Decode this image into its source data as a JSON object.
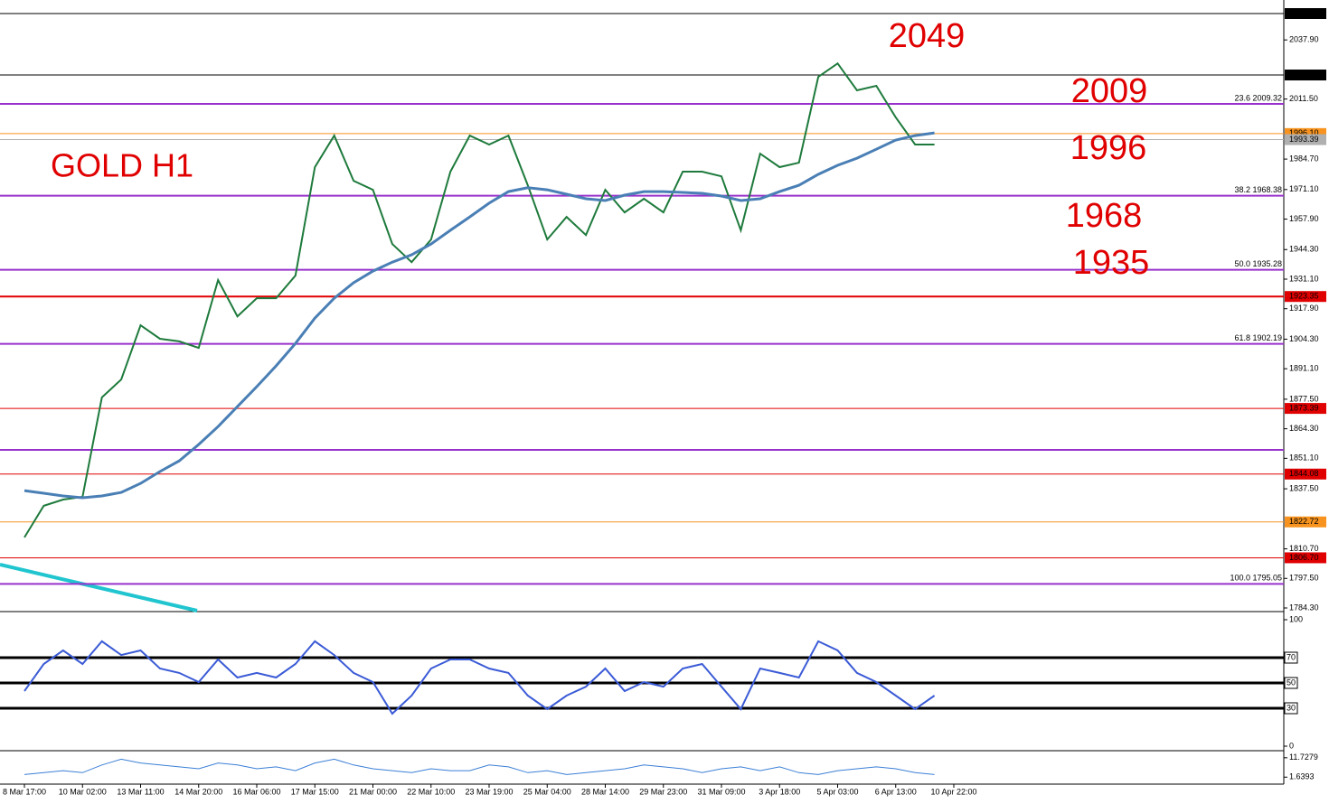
{
  "chart_data": [
    {
      "type": "line",
      "title": "GOLD H1",
      "categories": [
        "8 Mar 17:00",
        null,
        null,
        "10 Mar 02:00",
        null,
        null,
        "13 Mar 11:00",
        null,
        null,
        "14 Mar 20:00",
        null,
        null,
        "16 Mar 06:00",
        null,
        null,
        "17 Mar 15:00",
        null,
        null,
        "21 Mar 00:00",
        null,
        null,
        "22 Mar 10:00",
        null,
        null,
        "23 Mar 19:00",
        null,
        null,
        "25 Mar 04:00",
        null,
        null,
        "28 Mar 14:00",
        null,
        null,
        "29 Mar 23:00",
        null,
        null,
        "31 Mar 09:00",
        null,
        null,
        "3 Apr 18:00",
        null,
        null,
        "5 Apr 03:00",
        null,
        null,
        "6 Apr 13:00",
        null,
        null,
        "10 Apr 22:00"
      ],
      "series": [
        {
          "color": "#1e7a3c",
          "values": [
            1815.8,
            1829.9,
            1832.7,
            1833.9,
            1878.3,
            1886.3,
            1910.5,
            1904.5,
            1903.3,
            1900.4,
            1930.7,
            1914.5,
            1922.6,
            1922.6,
            1932.7,
            1981.1,
            1995.2,
            1975.0,
            1971.0,
            1946.8,
            1938.7,
            1948.8,
            1979.1,
            1995.2,
            1991.2,
            1995.2,
            1973.0,
            1948.8,
            1958.9,
            1950.8,
            1971.0,
            1960.9,
            1967.0,
            1960.9,
            1979.1,
            1979.1,
            1977.0,
            1952.9,
            1987.1,
            1981.1,
            1983.1,
            2021.4,
            2027.4,
            2015.4,
            2017.4,
            2003.3,
            1991.2,
            1991.2,
            null
          ]
        },
        {
          "color": "#4a7fb5",
          "values": [
            1836.7,
            1835.5,
            1834.3,
            1833.5,
            1834.3,
            1835.9,
            1839.9,
            1845.2,
            1850.0,
            1857.3,
            1865.3,
            1874.2,
            1883.1,
            1892.4,
            1902.4,
            1913.7,
            1922.6,
            1929.5,
            1934.7,
            1938.7,
            1942.0,
            1946.8,
            1952.9,
            1958.9,
            1965.0,
            1970.2,
            1971.9,
            1971.0,
            1969.0,
            1967.0,
            1966.2,
            1968.6,
            1970.2,
            1970.2,
            1969.8,
            1969.4,
            1968.2,
            1966.2,
            1967.0,
            1970.2,
            1973.0,
            1977.9,
            1981.9,
            1985.1,
            1989.1,
            1993.2,
            1995.2,
            1996.4,
            null
          ]
        }
      ],
      "ylim": [
        1784.3,
        2049.67
      ],
      "yticks": [
        {
          "value": 2037.9,
          "label": "2037.90"
        },
        {
          "value": 2011.5,
          "label": "2011.50"
        },
        {
          "value": 1984.7,
          "label": "1984.70"
        },
        {
          "value": 1971.1,
          "label": "1971.10"
        },
        {
          "value": 1957.9,
          "label": "1957.90"
        },
        {
          "value": 1944.3,
          "label": "1944.30"
        },
        {
          "value": 1931.1,
          "label": "1931.10"
        },
        {
          "value": 1917.9,
          "label": "1917.90"
        },
        {
          "value": 1904.3,
          "label": "1904.30"
        },
        {
          "value": 1891.1,
          "label": "1891.10"
        },
        {
          "value": 1877.5,
          "label": "1877.50"
        },
        {
          "value": 1864.3,
          "label": "1864.30"
        },
        {
          "value": 1851.1,
          "label": "1851.10"
        },
        {
          "value": 1837.5,
          "label": "1837.50"
        },
        {
          "value": 1810.7,
          "label": "1810.70"
        },
        {
          "value": 1797.5,
          "label": "1797.50"
        },
        {
          "value": 1784.3,
          "label": "1784.30"
        }
      ],
      "price_lines": [
        {
          "value": 2049.67,
          "label": "2049.67",
          "color": "#000000",
          "width": 1
        },
        {
          "value": 2022.24,
          "label": "2022.24",
          "color": "#000000",
          "width": 1
        },
        {
          "value": 2009.32,
          "label": "2009.32",
          "level": "23.6",
          "color": "#9932cc",
          "width": 2
        },
        {
          "value": 1996.1,
          "label": "1996.10",
          "color": "#f7931e",
          "width": 1
        },
        {
          "value": 1993.39,
          "label": "1993.39",
          "color": "#b0b0b0",
          "width": 1
        },
        {
          "value": 1968.38,
          "label": "1968.38",
          "level": "38.2",
          "color": "#9932cc",
          "width": 2
        },
        {
          "value": 1935.28,
          "label": "1935.28",
          "level": "50.0",
          "color": "#9932cc",
          "width": 2
        },
        {
          "value": 1923.35,
          "label": "1923.35",
          "color": "#e00000",
          "width": 2
        },
        {
          "value": 1902.19,
          "label": "1902.19",
          "level": "61.8",
          "color": "#9932cc",
          "width": 2
        },
        {
          "value": 1873.39,
          "label": "1873.39",
          "color": "#e00000",
          "width": 1
        },
        {
          "value": 1854.9,
          "color": "#9932cc",
          "width": 2
        },
        {
          "value": 1844.08,
          "label": "1844.08",
          "color": "#e00000",
          "width": 1
        },
        {
          "value": 1822.72,
          "label": "1822.72",
          "color": "#f7931e",
          "width": 1
        },
        {
          "value": 1806.7,
          "label": "1806.70",
          "color": "#e00000",
          "width": 1
        },
        {
          "value": 1795.05,
          "label": "1795.05",
          "level": "100.0",
          "color": "#9932cc",
          "width": 2
        }
      ],
      "annotations": [
        "2049",
        "2009",
        "1996",
        "1968",
        "1935"
      ]
    },
    {
      "type": "line",
      "series": [
        {
          "color": "#3b5bd6",
          "values": [
            43.6,
            65,
            75.7,
            65,
            82.9,
            72.1,
            75.7,
            61.4,
            57.9,
            50.7,
            68.6,
            54.3,
            57.9,
            54.3,
            65,
            82.9,
            72.1,
            57.9,
            50.7,
            25.7,
            40,
            61.4,
            68.6,
            68.6,
            61.4,
            57.9,
            40,
            29.3,
            40,
            47.1,
            61.4,
            43.6,
            50.7,
            47.1,
            61.4,
            65,
            47.1,
            29.3,
            61.4,
            57.9,
            54.3,
            82.9,
            75.7,
            57.9,
            50.7,
            40,
            29.3,
            40,
            null
          ]
        }
      ],
      "ylim": [
        0,
        100
      ],
      "yticks": [
        0,
        100
      ],
      "levels": [
        30,
        50,
        70
      ]
    },
    {
      "type": "line",
      "series": [
        {
          "color": "#3b7fd6",
          "values": [
            3,
            4,
            5,
            4,
            8,
            11,
            9,
            8,
            7,
            6,
            9,
            8,
            6,
            7,
            5,
            9,
            11,
            8,
            6,
            5,
            4,
            6,
            5,
            5,
            8,
            7,
            4,
            5,
            3,
            4,
            5,
            6,
            8,
            7,
            6,
            4,
            6,
            7,
            5,
            7,
            4,
            3,
            5,
            6,
            7,
            6,
            4,
            3,
            null
          ]
        }
      ],
      "ylim": [
        -2,
        14
      ],
      "yticks": [
        {
          "value": 11.7279,
          "label": "11.7279"
        },
        {
          "value": 1.6393,
          "label": "1.6393"
        }
      ]
    }
  ]
}
